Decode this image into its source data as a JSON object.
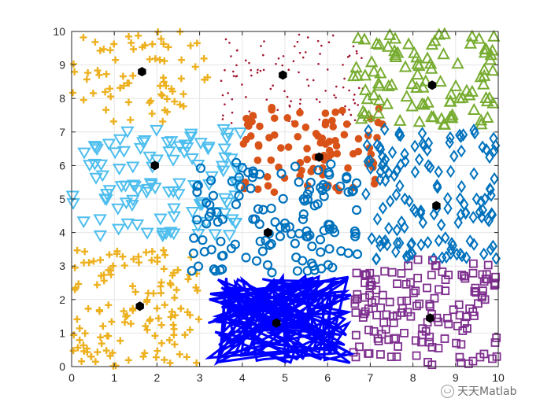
{
  "chart_data": {
    "type": "scatter",
    "xlim": [
      0,
      10
    ],
    "ylim": [
      0,
      10
    ],
    "xticks": [
      "0",
      "1",
      "2",
      "3",
      "4",
      "5",
      "6",
      "7",
      "8",
      "9",
      "10"
    ],
    "yticks": [
      "0",
      "1",
      "2",
      "3",
      "4",
      "5",
      "6",
      "7",
      "8",
      "9",
      "10"
    ],
    "grid": true,
    "legend": "none",
    "clusters": [
      {
        "marker": "plus",
        "color": "#EDB120",
        "region": {
          "x": [
            0,
            3.2
          ],
          "y": [
            7.3,
            10
          ]
        },
        "count": 75,
        "centroid": [
          1.65,
          8.8
        ]
      },
      {
        "marker": "plus",
        "color": "#EDB120",
        "region": {
          "x": [
            0,
            3
          ],
          "y": [
            0,
            3.5
          ]
        },
        "count": 130,
        "centroid": [
          1.6,
          1.8
        ]
      },
      {
        "marker": "triangle-down",
        "color": "#4DBEEE",
        "region": {
          "x": [
            0,
            4
          ],
          "y": [
            3.9,
            7.1
          ]
        },
        "count": 110,
        "centroid": [
          1.95,
          6.0
        ]
      },
      {
        "marker": "dot",
        "color": "#A2142F",
        "region": {
          "x": [
            3.5,
            6.9
          ],
          "y": [
            7.2,
            10
          ]
        },
        "count": 110,
        "centroid": [
          4.95,
          8.7
        ]
      },
      {
        "marker": "filled-circle",
        "color": "#D95319",
        "region": {
          "x": [
            4,
            7.3
          ],
          "y": [
            5.2,
            7.8
          ]
        },
        "count": 90,
        "centroid": [
          5.8,
          6.25
        ]
      },
      {
        "marker": "triangle-up",
        "color": "#77AC30",
        "region": {
          "x": [
            6.6,
            10
          ],
          "y": [
            7.2,
            10
          ]
        },
        "count": 100,
        "centroid": [
          8.45,
          8.4
        ]
      },
      {
        "marker": "circle",
        "color": "#0072BD",
        "region": {
          "x": [
            2.8,
            6.7
          ],
          "y": [
            2.8,
            6.1
          ]
        },
        "count": 130,
        "centroid": [
          4.6,
          4.0
        ]
      },
      {
        "marker": "diamond",
        "color": "#0072BD",
        "region": {
          "x": [
            6.8,
            10
          ],
          "y": [
            3.2,
            7.1
          ]
        },
        "count": 140,
        "centroid": [
          8.55,
          4.8
        ]
      },
      {
        "marker": "square",
        "color": "#7E2F8E",
        "region": {
          "x": [
            6.6,
            10
          ],
          "y": [
            0,
            3.2
          ]
        },
        "count": 150,
        "centroid": [
          8.4,
          1.45
        ]
      },
      {
        "marker": "line",
        "color": "#0000FF",
        "region": {
          "x": [
            3.2,
            6.6
          ],
          "y": [
            0.1,
            2.7
          ]
        },
        "count": 150,
        "centroid": [
          4.8,
          1.3
        ]
      }
    ],
    "centroid_marker": {
      "shape": "hexagon",
      "color": "#000000"
    }
  },
  "watermark": {
    "icon": "wechat-icon",
    "text": "天天Matlab"
  }
}
